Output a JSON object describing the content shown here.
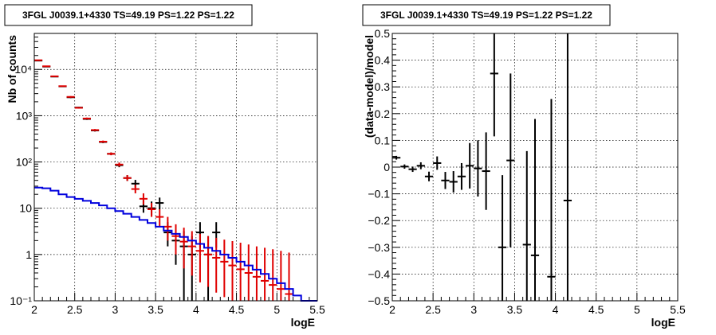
{
  "chart_data": [
    {
      "type": "scatter",
      "title": "3FGL J0039.1+4330 TS=49.19 PS=1.22 PS=1.22",
      "xlabel": "logE",
      "ylabel": "Nb of counts",
      "xlim": [
        2,
        5.5
      ],
      "ylim": [
        0.1,
        60000
      ],
      "log_y": true,
      "grid": true,
      "x_ticks": [
        2,
        2.5,
        3,
        3.5,
        4,
        4.5,
        5,
        5.5
      ],
      "x_tick_labels": [
        "2",
        "2.5",
        "3",
        "3.5",
        "4",
        "4.5",
        "5",
        "5.5"
      ],
      "y_ticks": [
        0.1,
        1,
        10,
        100,
        1000,
        10000
      ],
      "y_tick_labels": [
        "10⁻¹",
        "1",
        "10",
        "10²",
        "10³",
        "10⁴"
      ],
      "series": [
        {
          "color": "#000000",
          "bin_width": 0.1,
          "points": [
            {
              "x": 2.05,
              "y": 15500,
              "lo": 15300,
              "hi": 15700
            },
            {
              "x": 2.15,
              "y": 11500,
              "lo": 11300,
              "hi": 11700
            },
            {
              "x": 2.25,
              "y": 7000,
              "lo": 6900,
              "hi": 7100
            },
            {
              "x": 2.35,
              "y": 4300,
              "lo": 4200,
              "hi": 4400
            },
            {
              "x": 2.45,
              "y": 2500,
              "lo": 2400,
              "hi": 2600
            },
            {
              "x": 2.55,
              "y": 1500,
              "lo": 1450,
              "hi": 1550
            },
            {
              "x": 2.65,
              "y": 850,
              "lo": 810,
              "hi": 890
            },
            {
              "x": 2.75,
              "y": 480,
              "lo": 455,
              "hi": 505
            },
            {
              "x": 2.85,
              "y": 270,
              "lo": 255,
              "hi": 285
            },
            {
              "x": 2.95,
              "y": 150,
              "lo": 140,
              "hi": 160
            },
            {
              "x": 3.05,
              "y": 85,
              "lo": 77,
              "hi": 94
            },
            {
              "x": 3.15,
              "y": 45,
              "lo": 39,
              "hi": 52
            },
            {
              "x": 3.25,
              "y": 34,
              "lo": 28,
              "hi": 41
            },
            {
              "x": 3.35,
              "y": 11,
              "lo": 8,
              "hi": 15
            },
            {
              "x": 3.45,
              "y": 10,
              "lo": 7,
              "hi": 14
            },
            {
              "x": 3.55,
              "y": 13,
              "lo": 9.5,
              "hi": 17
            },
            {
              "x": 3.65,
              "y": 3,
              "lo": 1.5,
              "hi": 5
            },
            {
              "x": 3.75,
              "y": 2,
              "lo": 0.6,
              "hi": 3.8
            },
            {
              "x": 3.85,
              "y": 1.5,
              "lo": 0.1,
              "hi": 3.2
            },
            {
              "x": 3.95,
              "y": 1,
              "lo": 0.1,
              "hi": 2.5
            },
            {
              "x": 4.05,
              "y": 3,
              "lo": 1.4,
              "hi": 5
            },
            {
              "x": 4.15,
              "y": 1,
              "lo": 0.1,
              "hi": 2.5
            },
            {
              "x": 4.25,
              "y": 3,
              "lo": 1.4,
              "hi": 5
            }
          ]
        },
        {
          "color": "#e00000",
          "bin_width": 0.1,
          "points": [
            {
              "x": 2.05,
              "y": 15800,
              "lo": 15600,
              "hi": 16000
            },
            {
              "x": 2.15,
              "y": 11700,
              "lo": 11500,
              "hi": 11900
            },
            {
              "x": 2.25,
              "y": 7100,
              "lo": 7000,
              "hi": 7200
            },
            {
              "x": 2.35,
              "y": 4350,
              "lo": 4250,
              "hi": 4450
            },
            {
              "x": 2.45,
              "y": 2550,
              "lo": 2450,
              "hi": 2650
            },
            {
              "x": 2.55,
              "y": 1480,
              "lo": 1420,
              "hi": 1540
            },
            {
              "x": 2.65,
              "y": 870,
              "lo": 830,
              "hi": 910
            },
            {
              "x": 2.75,
              "y": 490,
              "lo": 465,
              "hi": 515
            },
            {
              "x": 2.85,
              "y": 275,
              "lo": 260,
              "hi": 290
            },
            {
              "x": 2.95,
              "y": 150,
              "lo": 140,
              "hi": 160
            },
            {
              "x": 3.05,
              "y": 88,
              "lo": 80,
              "hi": 97
            },
            {
              "x": 3.15,
              "y": 45,
              "lo": 39,
              "hi": 52
            },
            {
              "x": 3.25,
              "y": 26,
              "lo": 21,
              "hi": 32
            },
            {
              "x": 3.35,
              "y": 16,
              "lo": 12,
              "hi": 21
            },
            {
              "x": 3.45,
              "y": 9.5,
              "lo": 6.5,
              "hi": 13
            },
            {
              "x": 3.55,
              "y": 6.5,
              "lo": 4,
              "hi": 9.5
            },
            {
              "x": 3.65,
              "y": 4,
              "lo": 2,
              "hi": 6.5
            },
            {
              "x": 3.75,
              "y": 2.5,
              "lo": 1,
              "hi": 4.5
            },
            {
              "x": 3.85,
              "y": 1.9,
              "lo": 0.5,
              "hi": 3.8
            },
            {
              "x": 3.95,
              "y": 1.5,
              "lo": 0.35,
              "hi": 3.2
            },
            {
              "x": 4.05,
              "y": 1.2,
              "lo": 0.25,
              "hi": 2.8
            },
            {
              "x": 4.15,
              "y": 1.0,
              "lo": 0.2,
              "hi": 2.5
            },
            {
              "x": 4.25,
              "y": 0.85,
              "lo": 0.15,
              "hi": 2.3
            },
            {
              "x": 4.35,
              "y": 0.7,
              "lo": 0.12,
              "hi": 2.1
            },
            {
              "x": 4.45,
              "y": 0.58,
              "lo": 0.1,
              "hi": 1.95
            },
            {
              "x": 4.55,
              "y": 0.48,
              "lo": 0.1,
              "hi": 1.8
            },
            {
              "x": 4.65,
              "y": 0.4,
              "lo": 0.1,
              "hi": 1.65
            },
            {
              "x": 4.75,
              "y": 0.33,
              "lo": 0.1,
              "hi": 1.5
            },
            {
              "x": 4.85,
              "y": 0.27,
              "lo": 0.1,
              "hi": 1.4
            },
            {
              "x": 4.95,
              "y": 0.22,
              "lo": 0.1,
              "hi": 1.3
            },
            {
              "x": 5.05,
              "y": 0.18,
              "lo": 0.1,
              "hi": 1.2
            },
            {
              "x": 5.15,
              "y": 0.14,
              "lo": 0.1,
              "hi": 1.1
            }
          ]
        },
        {
          "color": "#0000dd",
          "style": "step",
          "bin_edges": [
            2.0,
            2.1,
            2.2,
            2.3,
            2.4,
            2.5,
            2.6,
            2.7,
            2.8,
            2.9,
            3.0,
            3.1,
            3.2,
            3.3,
            3.4,
            3.5,
            3.6,
            3.7,
            3.8,
            3.9,
            4.0,
            4.1,
            4.2,
            4.3,
            4.4,
            4.5,
            4.6,
            4.7,
            4.8,
            4.9,
            5.0,
            5.1,
            5.2,
            5.3,
            5.4,
            5.5
          ],
          "values": [
            28,
            27,
            24,
            20,
            17.5,
            16,
            14.5,
            13,
            11.5,
            10,
            8.7,
            7.6,
            6.5,
            5.6,
            4.8,
            4.0,
            3.3,
            2.8,
            2.4,
            2.0,
            1.7,
            1.4,
            1.2,
            1.0,
            0.85,
            0.7,
            0.58,
            0.47,
            0.38,
            0.3,
            0.24,
            0.18,
            0.13,
            0.1,
            0.1
          ]
        }
      ]
    },
    {
      "type": "scatter",
      "title": "3FGL J0039.1+4330 TS=49.19 PS=1.22 PS=1.22",
      "xlabel": "logE",
      "ylabel": "(data-model)/model",
      "xlim": [
        2,
        5.5
      ],
      "ylim": [
        -0.5,
        0.5
      ],
      "grid": true,
      "x_ticks": [
        2,
        2.5,
        3,
        3.5,
        4,
        4.5,
        5,
        5.5
      ],
      "x_tick_labels": [
        "2",
        "2.5",
        "3",
        "3.5",
        "4",
        "4.5",
        "5",
        "5.5"
      ],
      "y_ticks": [
        -0.5,
        -0.4,
        -0.3,
        -0.2,
        -0.1,
        0,
        0.1,
        0.2,
        0.3,
        0.4,
        0.5
      ],
      "y_tick_labels": [
        "−0.5",
        "−0.4",
        "−0.3",
        "−0.2",
        "−0.1",
        "0",
        "0.1",
        "0.2",
        "0.3",
        "0.4",
        "0.5"
      ],
      "series": [
        {
          "color": "#000000",
          "bin_width": 0.1,
          "points": [
            {
              "x": 2.05,
              "y": 0.035,
              "lo": 0.028,
              "hi": 0.042
            },
            {
              "x": 2.15,
              "y": 0.002,
              "lo": -0.006,
              "hi": 0.01
            },
            {
              "x": 2.25,
              "y": -0.008,
              "lo": -0.018,
              "hi": 0.002
            },
            {
              "x": 2.35,
              "y": 0.005,
              "lo": -0.008,
              "hi": 0.018
            },
            {
              "x": 2.45,
              "y": -0.035,
              "lo": -0.053,
              "hi": -0.017
            },
            {
              "x": 2.55,
              "y": 0.015,
              "lo": -0.01,
              "hi": 0.04
            },
            {
              "x": 2.65,
              "y": -0.05,
              "lo": -0.082,
              "hi": -0.018
            },
            {
              "x": 2.75,
              "y": -0.055,
              "lo": -0.095,
              "hi": -0.015
            },
            {
              "x": 2.85,
              "y": -0.035,
              "lo": -0.085,
              "hi": 0.015
            },
            {
              "x": 2.95,
              "y": 0.005,
              "lo": -0.08,
              "hi": 0.09
            },
            {
              "x": 3.05,
              "y": -0.005,
              "lo": -0.11,
              "hi": 0.1
            },
            {
              "x": 3.15,
              "y": -0.015,
              "lo": -0.16,
              "hi": 0.13
            },
            {
              "x": 3.25,
              "y": 0.35,
              "lo": 0.115,
              "hi": 0.6
            },
            {
              "x": 3.35,
              "y": -0.3,
              "lo": -0.62,
              "hi": -0.03
            },
            {
              "x": 3.45,
              "y": 0.025,
              "lo": -0.3,
              "hi": 0.35
            },
            {
              "x": 3.65,
              "y": -0.29,
              "lo": -0.62,
              "hi": 0.06
            },
            {
              "x": 3.75,
              "y": -0.33,
              "lo": -0.62,
              "hi": 0.18
            },
            {
              "x": 3.95,
              "y": -0.41,
              "lo": -0.62,
              "hi": 0.255
            },
            {
              "x": 4.15,
              "y": -0.125,
              "lo": -0.62,
              "hi": 0.6
            }
          ]
        }
      ]
    }
  ]
}
